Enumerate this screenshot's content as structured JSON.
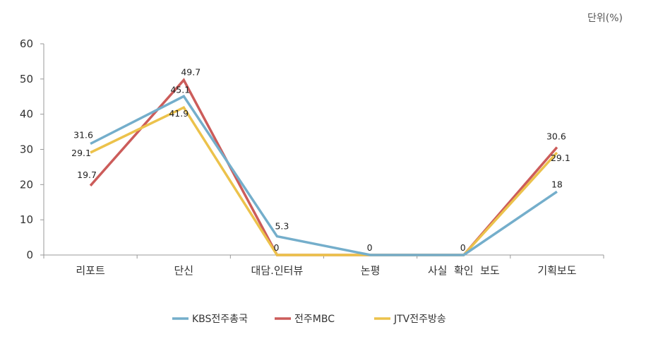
{
  "chart_data": {
    "type": "line",
    "unit_label": "단위(%)",
    "categories": [
      "리포트",
      "단신",
      "대담.인터뷰",
      "논평",
      "사실  확인  보도",
      "기획보도"
    ],
    "ylim": [
      0,
      60
    ],
    "yticks": [
      0,
      10,
      20,
      30,
      40,
      50,
      60
    ],
    "grid": false,
    "legend_position": "bottom",
    "series": [
      {
        "name": "KBS전주총국",
        "color": "#74aecb",
        "values": [
          31.6,
          45.1,
          5.3,
          0,
          0,
          18
        ],
        "labels": [
          "31.6",
          "45.1",
          "5.3",
          "",
          "",
          "18"
        ]
      },
      {
        "name": "전주MBC",
        "color": "#cc5c5a",
        "values": [
          19.7,
          49.7,
          0,
          0,
          0,
          30.6
        ],
        "labels": [
          "19.7",
          "49.7",
          "0",
          "0",
          "0",
          "30.6"
        ]
      },
      {
        "name": "JTV전주방송",
        "color": "#ecc24b",
        "values": [
          29.1,
          41.9,
          0,
          0,
          0,
          29.1
        ],
        "labels": [
          "29.1",
          "41.9",
          "",
          "",
          "",
          "29.1"
        ]
      }
    ]
  }
}
